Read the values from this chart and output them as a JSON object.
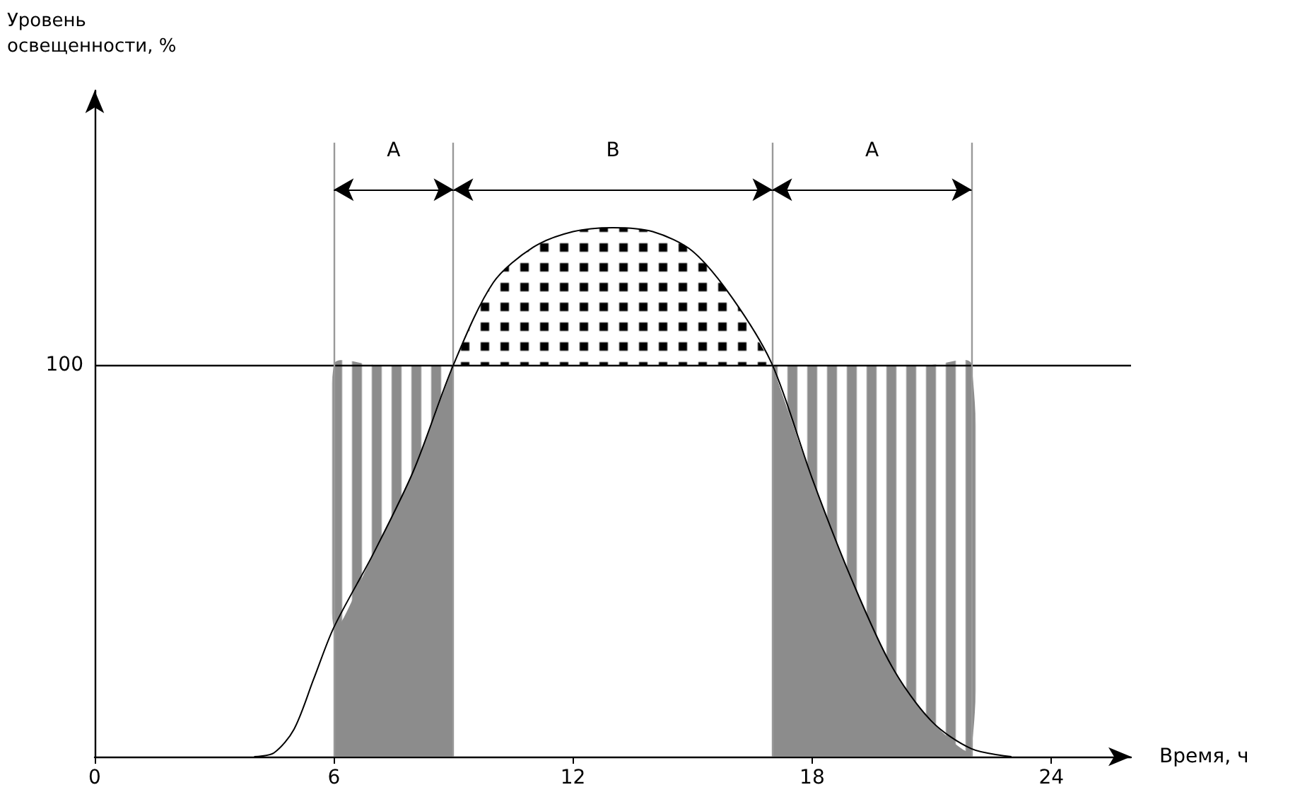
{
  "chart_data": {
    "type": "line",
    "xlabel": "Время, ч",
    "ylabel": "Уровень освещенности, %",
    "xlim": [
      0,
      26
    ],
    "xticks": [
      0,
      6,
      12,
      18,
      24
    ],
    "ylim": [
      0,
      170
    ],
    "yticks": [
      100
    ],
    "grid": false,
    "marker": "none",
    "line_style": "solid",
    "series": [
      {
        "color": "#000000",
        "x": [
          4,
          4.5,
          5,
          5.5,
          6,
          7,
          8,
          9,
          10,
          11,
          12,
          13,
          14,
          15,
          16,
          17,
          18,
          19,
          20,
          21,
          22,
          23
        ],
        "values": [
          0,
          1,
          7,
          20,
          33,
          52,
          73,
          100,
          121,
          130,
          134,
          135,
          134,
          129,
          117,
          100,
          71,
          45,
          23,
          9,
          2,
          0
        ],
        "lower": [
          null,
          null,
          null,
          null,
          null,
          null,
          null,
          100,
          100,
          100,
          100,
          100,
          100,
          100,
          100,
          100,
          null,
          null,
          null,
          null,
          null,
          null
        ],
        "upper": [
          null,
          null,
          null,
          null,
          null,
          null,
          null,
          100,
          121,
          130,
          134,
          135,
          134,
          129,
          117,
          100,
          null,
          null,
          null,
          null,
          null,
          null
        ]
      },
      {
        "type": "area",
        "color": "#8c8c8c",
        "x": [
          6,
          7,
          8,
          9
        ],
        "values": [
          33,
          52,
          73,
          100
        ],
        "lower": [
          33,
          52,
          73,
          100
        ],
        "upper": [
          100,
          100,
          100,
          100
        ]
      },
      {
        "type": "area",
        "color": "#8c8c8c",
        "x": [
          17,
          18,
          19,
          20,
          21,
          22
        ],
        "values": [
          100,
          71,
          45,
          23,
          9,
          2
        ],
        "lower": [
          100,
          71,
          45,
          23,
          9,
          2
        ],
        "upper": [
          100,
          100,
          100,
          100,
          100,
          100
        ]
      }
    ],
    "ref_lines": [
      {
        "axis": "y",
        "value": 100,
        "color": "#000000"
      },
      {
        "axis": "x",
        "value": 6,
        "color": "#999999"
      },
      {
        "axis": "x",
        "value": 9,
        "color": "#999999"
      },
      {
        "axis": "x",
        "value": 17,
        "color": "#999999"
      },
      {
        "axis": "x",
        "value": 22,
        "color": "#999999"
      }
    ],
    "annotations": [
      "A",
      "B",
      "A"
    ]
  }
}
